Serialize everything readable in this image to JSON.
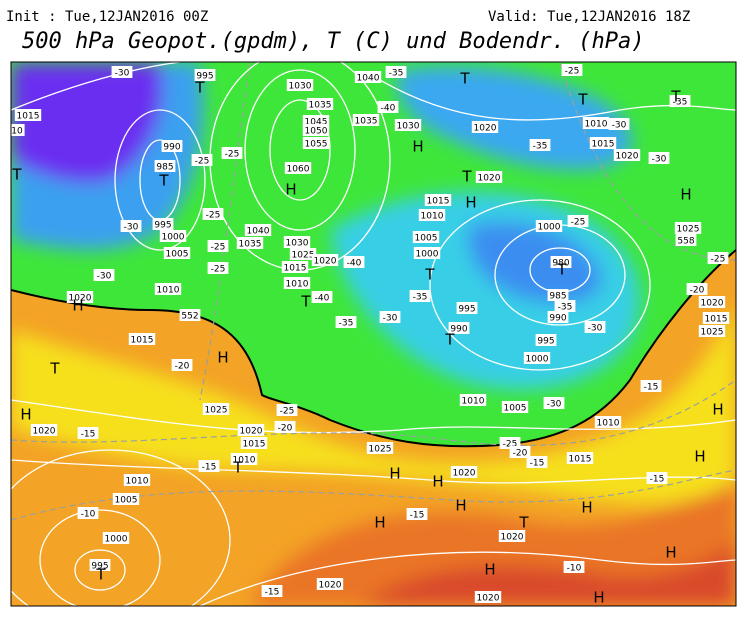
{
  "header": {
    "init": "Init : Tue,12JAN2016 00Z",
    "valid": "Valid: Tue,12JAN2016 18Z",
    "title": "500 hPa Geopot.(gpdm), T (C) und Bodendr. (hPa)"
  },
  "map": {
    "pressure_labels": [
      "995",
      "1030",
      "1040",
      "1015",
      "10",
      "990",
      "985",
      "1035",
      "1045",
      "1050",
      "1055",
      "1060",
      "1035",
      "1030",
      "1020",
      "1010",
      "1015",
      "1020",
      "1020",
      "1015",
      "1010",
      "995",
      "1000",
      "1005",
      "1040",
      "1035",
      "1030",
      "1025",
      "1015",
      "1020",
      "1010",
      "1005",
      "1000",
      "1000",
      "980",
      "985",
      "990",
      "995",
      "1000",
      "995",
      "990",
      "1010",
      "1020",
      "1015",
      "1025",
      "1020",
      "1015",
      "1010",
      "1020",
      "1010",
      "1005",
      "1010",
      "1025",
      "1020",
      "1015",
      "1010",
      "1005",
      "1000",
      "995",
      "1020",
      "1020",
      "1020",
      "1025",
      "1020",
      "1015",
      "1025"
    ],
    "centers": [
      "T",
      "T",
      "T",
      "T",
      "T",
      "T",
      "H",
      "H",
      "H",
      "T",
      "H",
      "T",
      "T",
      "T",
      "T",
      "H",
      "H",
      "T",
      "H",
      "T",
      "H",
      "H",
      "H",
      "H",
      "T",
      "H",
      "H",
      "H",
      "T",
      "H",
      "H",
      "H"
    ],
    "temperature_labels": [
      "-30",
      "-35",
      "-25",
      "-40",
      "-35",
      "-30",
      "-35",
      "-30",
      "-25",
      "-25",
      "-30",
      "-25",
      "-25",
      "-25",
      "-30",
      "-40",
      "-40",
      "-35",
      "-35",
      "-30",
      "-25",
      "-25",
      "-20",
      "-35",
      "-30",
      "-20",
      "-25",
      "-20",
      "-30",
      "-25",
      "-20",
      "-15",
      "-15",
      "-15",
      "-10",
      "-15",
      "-15",
      "-15",
      "-10",
      "-15"
    ],
    "geopotential_labels": [
      "552",
      "558"
    ]
  }
}
